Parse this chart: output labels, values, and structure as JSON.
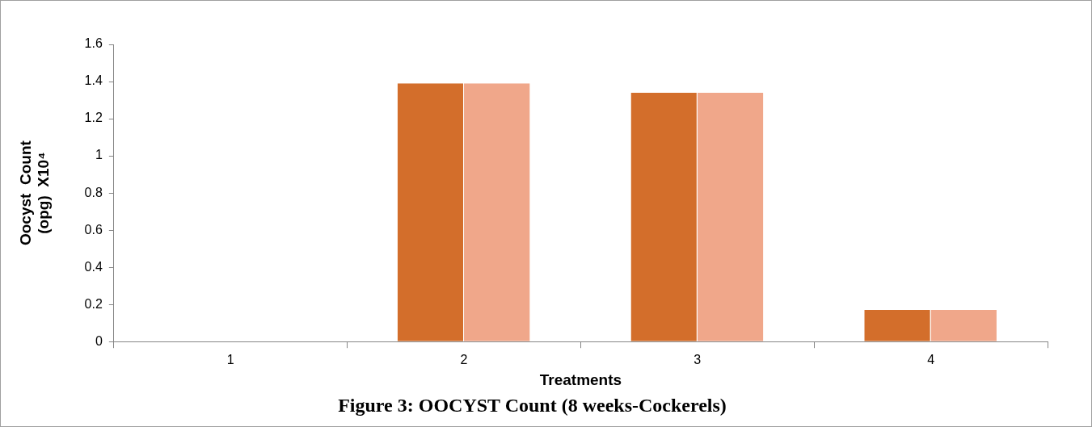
{
  "chart_data": {
    "type": "bar",
    "title": "Figure 3: OOCYST Count (8 weeks-Cockerels)",
    "xlabel": "Treatments",
    "ylabel": "Oocyst  Count\n(opg)  X10⁴",
    "categories": [
      "1",
      "2",
      "3",
      "4"
    ],
    "series": [
      {
        "color": "#d36e2b",
        "values": [
          0,
          1.39,
          1.34,
          0.17
        ]
      },
      {
        "color": "#f0a78a",
        "values": [
          0,
          1.39,
          1.34,
          0.17
        ]
      }
    ],
    "ylim": [
      0,
      1.6
    ],
    "yticks": [
      0,
      0.2,
      0.4,
      0.6,
      0.8,
      1,
      1.2,
      1.4,
      1.6
    ],
    "grid": false,
    "legend": false
  }
}
